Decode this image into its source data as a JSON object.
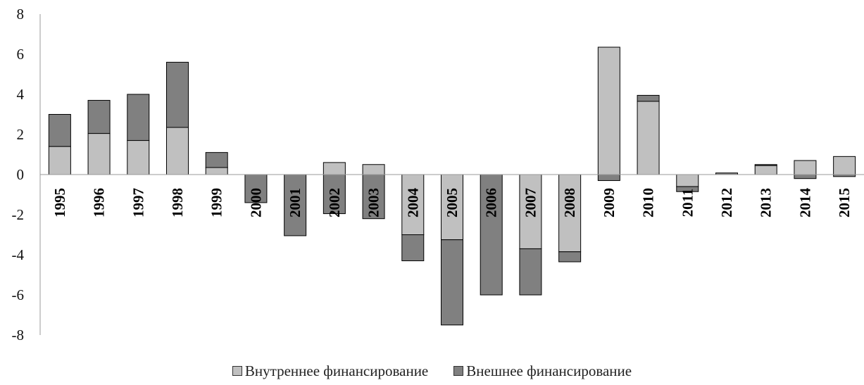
{
  "chart_data": {
    "type": "bar",
    "stacked": true,
    "ylim": [
      -8,
      8
    ],
    "yticks": [
      8,
      6,
      4,
      2,
      0,
      -2,
      -4,
      -6,
      -8
    ],
    "categories": [
      "1995",
      "1996",
      "1997",
      "1998",
      "1999",
      "2000",
      "2001",
      "2002",
      "2003",
      "2004",
      "2005",
      "2006",
      "2007",
      "2008",
      "2009",
      "2010",
      "2011",
      "2012",
      "2013",
      "2014",
      "2015"
    ],
    "series": [
      {
        "name": "Внутреннее финансирование",
        "color": "#c0c0c0",
        "values": [
          1.4,
          2.05,
          1.7,
          2.35,
          0.35,
          0.0,
          0.0,
          0.6,
          0.5,
          -3.0,
          -3.25,
          0.0,
          -3.7,
          -3.85,
          6.35,
          3.65,
          -0.6,
          0.0,
          0.45,
          0.7,
          0.9
        ]
      },
      {
        "name": "Внешнее финансирование",
        "color": "#808080",
        "values": [
          1.6,
          1.65,
          2.3,
          3.25,
          0.75,
          -1.4,
          -3.05,
          -1.95,
          -2.2,
          -1.3,
          -4.25,
          -6.0,
          -2.3,
          -0.5,
          -0.3,
          0.3,
          -0.25,
          0.08,
          0.05,
          -0.2,
          -0.1
        ]
      }
    ],
    "legend_position": "bottom",
    "grid": false
  }
}
